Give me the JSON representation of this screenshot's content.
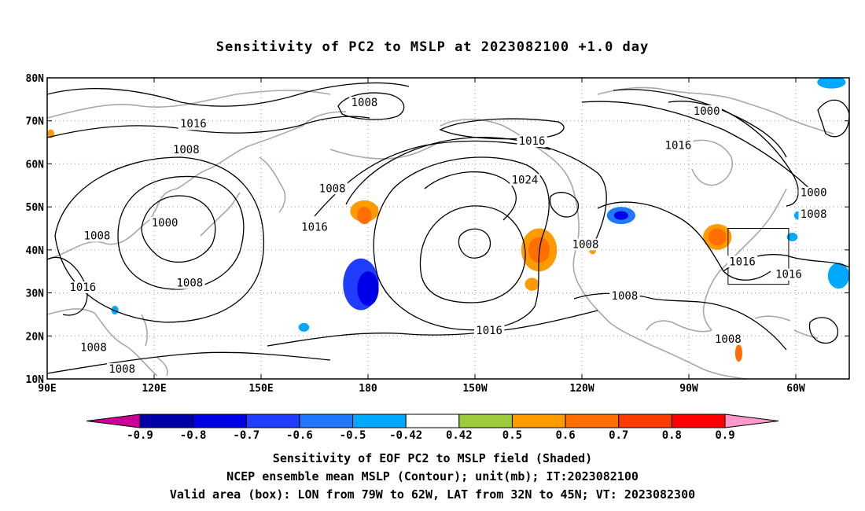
{
  "title": "Sensitivity of PC2 to MSLP at 2023082100 +1.0 day",
  "captions": {
    "line1": "Sensitivity of EOF PC2 to MSLP field (Shaded)",
    "line2": "NCEP ensemble mean MSLP (Contour); unit(mb); IT:2023082100",
    "line3": "Valid area (box): LON from 79W to 62W, LAT from 32N to 45N; VT: 2023082300"
  },
  "map": {
    "lon_range": [
      90,
      315
    ],
    "lat_range": [
      10,
      80
    ],
    "x_ticks": [
      {
        "lon": 90,
        "label": "90E"
      },
      {
        "lon": 120,
        "label": "120E"
      },
      {
        "lon": 150,
        "label": "150E"
      },
      {
        "lon": 180,
        "label": "180"
      },
      {
        "lon": 210,
        "label": "150W"
      },
      {
        "lon": 240,
        "label": "120W"
      },
      {
        "lon": 270,
        "label": "90W"
      },
      {
        "lon": 300,
        "label": "60W"
      }
    ],
    "y_ticks": [
      {
        "lat": 10,
        "label": "10N"
      },
      {
        "lat": 20,
        "label": "20N"
      },
      {
        "lat": 30,
        "label": "30N"
      },
      {
        "lat": 40,
        "label": "40N"
      },
      {
        "lat": 50,
        "label": "50N"
      },
      {
        "lat": 60,
        "label": "60N"
      },
      {
        "lat": 70,
        "label": "70N"
      },
      {
        "lat": 80,
        "label": "80N"
      }
    ],
    "valid_box": {
      "lon_w": 281,
      "lon_e": 298,
      "lat_s": 32,
      "lat_n": 45
    },
    "contour_labels": [
      {
        "text": "1008",
        "lon": 179,
        "lat": 74
      },
      {
        "text": "1016",
        "lon": 131,
        "lat": 69
      },
      {
        "text": "1008",
        "lon": 129,
        "lat": 63
      },
      {
        "text": "1016",
        "lon": 226,
        "lat": 65
      },
      {
        "text": "1016",
        "lon": 267,
        "lat": 64
      },
      {
        "text": "1000",
        "lon": 275,
        "lat": 72
      },
      {
        "text": "1024",
        "lon": 224,
        "lat": 56
      },
      {
        "text": "1008",
        "lon": 170,
        "lat": 54
      },
      {
        "text": "1000",
        "lon": 305,
        "lat": 53
      },
      {
        "text": "1008",
        "lon": 305,
        "lat": 48
      },
      {
        "text": "1000",
        "lon": 123,
        "lat": 46
      },
      {
        "text": "1016",
        "lon": 165,
        "lat": 45
      },
      {
        "text": "1008",
        "lon": 104,
        "lat": 43
      },
      {
        "text": "1008",
        "lon": 241,
        "lat": 41
      },
      {
        "text": "1016",
        "lon": 285,
        "lat": 37
      },
      {
        "text": "1016",
        "lon": 298,
        "lat": 34
      },
      {
        "text": "1008",
        "lon": 130,
        "lat": 32
      },
      {
        "text": "1016",
        "lon": 100,
        "lat": 31
      },
      {
        "text": "1008",
        "lon": 252,
        "lat": 29
      },
      {
        "text": "1016",
        "lon": 214,
        "lat": 21
      },
      {
        "text": "1008",
        "lon": 281,
        "lat": 19
      },
      {
        "text": "1008",
        "lon": 103,
        "lat": 17
      },
      {
        "text": "1008",
        "lon": 111,
        "lat": 12
      }
    ],
    "shaded_blobs": [
      {
        "lon": 178,
        "lat": 32,
        "rx": 5,
        "ry": 6,
        "level": -0.7
      },
      {
        "lon": 180,
        "lat": 31,
        "rx": 3,
        "ry": 4,
        "level": -0.8
      },
      {
        "lon": 179,
        "lat": 49,
        "rx": 4,
        "ry": 2.5,
        "level": 0.5
      },
      {
        "lon": 179,
        "lat": 48,
        "rx": 2,
        "ry": 2,
        "level": 0.6
      },
      {
        "lon": 228,
        "lat": 40,
        "rx": 5,
        "ry": 5,
        "level": 0.5
      },
      {
        "lon": 228,
        "lat": 40,
        "rx": 3,
        "ry": 3,
        "level": 0.6
      },
      {
        "lon": 251,
        "lat": 48,
        "rx": 4,
        "ry": 2,
        "level": -0.6
      },
      {
        "lon": 251,
        "lat": 48,
        "rx": 2,
        "ry": 1,
        "level": -0.8
      },
      {
        "lon": 278,
        "lat": 43,
        "rx": 4,
        "ry": 3,
        "level": 0.5
      },
      {
        "lon": 278,
        "lat": 43,
        "rx": 2.5,
        "ry": 2,
        "level": 0.6
      },
      {
        "lon": 312,
        "lat": 34,
        "rx": 3,
        "ry": 3,
        "level": -0.5
      },
      {
        "lon": 310,
        "lat": 79,
        "rx": 4,
        "ry": 1.5,
        "level": -0.5
      },
      {
        "lon": 91,
        "lat": 67,
        "rx": 1,
        "ry": 1,
        "level": 0.5
      },
      {
        "lon": 162,
        "lat": 22,
        "rx": 1.5,
        "ry": 1,
        "level": -0.5
      },
      {
        "lon": 109,
        "lat": 26,
        "rx": 1,
        "ry": 1,
        "level": -0.5
      },
      {
        "lon": 243,
        "lat": 40,
        "rx": 1,
        "ry": 1,
        "level": 0.5
      },
      {
        "lon": 299,
        "lat": 43,
        "rx": 1.5,
        "ry": 1,
        "level": -0.5
      },
      {
        "lon": 301,
        "lat": 48,
        "rx": 1.5,
        "ry": 1,
        "level": -0.5
      },
      {
        "lon": 284,
        "lat": 16,
        "rx": 1,
        "ry": 2,
        "level": 0.6
      },
      {
        "lon": 226,
        "lat": 32,
        "rx": 2,
        "ry": 1.5,
        "level": 0.5
      }
    ]
  },
  "colorbar": {
    "labels": [
      "-0.9",
      "-0.8",
      "-0.7",
      "-0.6",
      "-0.5",
      "-0.42",
      "0.42",
      "0.5",
      "0.6",
      "0.7",
      "0.8",
      "0.9"
    ],
    "colors": [
      "#0000a8",
      "#0000e6",
      "#1f3cff",
      "#1f78ff",
      "#00a8ff",
      "#ffffff",
      "#9ccc3c",
      "#ff9a00",
      "#ff6e00",
      "#ff3c00",
      "#ff0000"
    ],
    "low_end": "#cc0099",
    "high_end": "#ff99cc"
  },
  "colors": {
    "coast": "#a8a8a8",
    "contour": "#000000",
    "grid": "#9a9a9a"
  }
}
